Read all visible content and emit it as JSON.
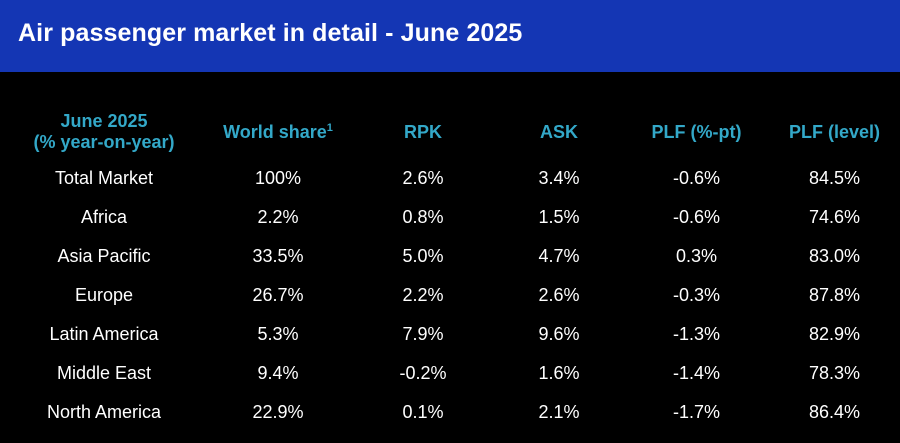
{
  "header": {
    "title": "Air passenger market in detail - June 2025",
    "background": "#1436b4"
  },
  "colors": {
    "page_background": "#000000",
    "column_header_text": "#33a8c8",
    "cell_text": "#ffffff"
  },
  "table": {
    "columns": {
      "region_line1": "June 2025",
      "region_line2": "(% year-on-year)",
      "world_share": "World share",
      "world_share_footnote": "1",
      "rpk": "RPK",
      "ask": "ASK",
      "plf_pt": "PLF (%-pt)",
      "plf_level": "PLF (level)"
    },
    "rows": [
      {
        "region": "Total Market",
        "world_share": "100%",
        "rpk": "2.6%",
        "ask": "3.4%",
        "plf_pt": "-0.6%",
        "plf_level": "84.5%"
      },
      {
        "region": "Africa",
        "world_share": "2.2%",
        "rpk": "0.8%",
        "ask": "1.5%",
        "plf_pt": "-0.6%",
        "plf_level": "74.6%"
      },
      {
        "region": "Asia Pacific",
        "world_share": "33.5%",
        "rpk": "5.0%",
        "ask": "4.7%",
        "plf_pt": "0.3%",
        "plf_level": "83.0%"
      },
      {
        "region": "Europe",
        "world_share": "26.7%",
        "rpk": "2.2%",
        "ask": "2.6%",
        "plf_pt": "-0.3%",
        "plf_level": "87.8%"
      },
      {
        "region": "Latin America",
        "world_share": "5.3%",
        "rpk": "7.9%",
        "ask": "9.6%",
        "plf_pt": "-1.3%",
        "plf_level": "82.9%"
      },
      {
        "region": "Middle East",
        "world_share": "9.4%",
        "rpk": "-0.2%",
        "ask": "1.6%",
        "plf_pt": "-1.4%",
        "plf_level": "78.3%"
      },
      {
        "region": "North America",
        "world_share": "22.9%",
        "rpk": "0.1%",
        "ask": "2.1%",
        "plf_pt": "-1.7%",
        "plf_level": "86.4%"
      }
    ]
  }
}
